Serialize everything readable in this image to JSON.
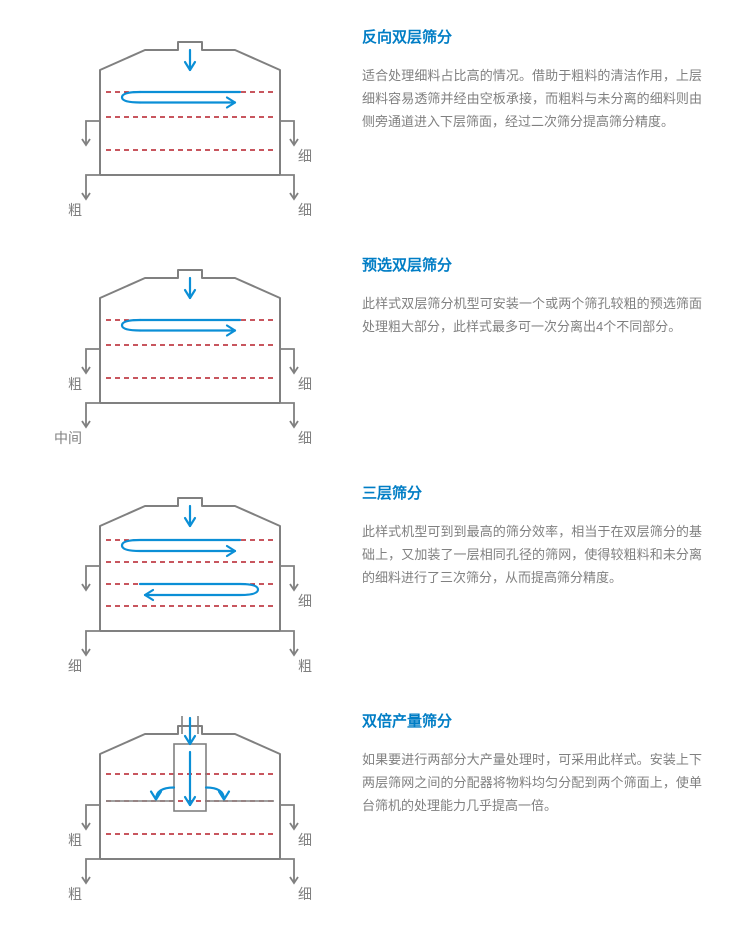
{
  "colors": {
    "title": "#007dc5",
    "body_text": "#808080",
    "outline": "#808080",
    "dashed_screen": "#b61f28",
    "arrow": "#0b8fd6",
    "background": "#ffffff"
  },
  "stroke": {
    "outline_w": 2,
    "screen_w": 1.4,
    "screen_dash": "5,4",
    "arrow_w": 2.2,
    "outlet_w": 1.8
  },
  "figures": [
    {
      "id": "fig1",
      "title": "反向双层筛分",
      "desc": "适合处理细料占比高的情况。借助于粗料的清洁作用，上层细料容易透筛并经由空板承接，而粗料与未分离的细料则由侧旁通道进入下层筛面，经过二次筛分提高筛分精度。",
      "outlets": {
        "left_upper": "",
        "left_lower": "粗",
        "right_upper": "细",
        "right_lower": "细"
      },
      "screens": [
        72,
        97,
        130
      ],
      "solid_deck": [
        72
      ],
      "arrows": "reverse"
    },
    {
      "id": "fig2",
      "title": "预选双层筛分",
      "desc": "此样式双层筛分机型可安装一个或两个筛孔较粗的预选筛面处理粗大部分，此样式最多可一次分离出4个不同部分。",
      "outlets": {
        "left_upper": "粗",
        "left_lower": "中间",
        "right_upper": "细",
        "right_lower": "细"
      },
      "screens": [
        72,
        97,
        130
      ],
      "solid_deck": [
        72
      ],
      "arrows": "reverse"
    },
    {
      "id": "fig3",
      "title": "三层筛分",
      "desc": "此样式机型可到到最高的筛分效率，相当于在双层筛分的基础上，又加装了一层相同孔径的筛网，使得较粗料和未分离的细料进行了三次筛分，从而提高筛分精度。",
      "outlets": {
        "left_upper": "",
        "left_lower": "细",
        "right_upper": "细",
        "right_lower": "粗"
      },
      "screens": [
        64,
        86,
        108,
        130
      ],
      "solid_deck": [
        64,
        108
      ],
      "arrows": "zigzag"
    },
    {
      "id": "fig4",
      "title": "双倍产量筛分",
      "desc": "如果要进行两部分大产量处理时，可采用此样式。安装上下两层筛网之间的分配器将物料均匀分配到两个筛面上，使单台筛机的处理能力几乎提高一倍。",
      "outlets": {
        "left_upper": "粗",
        "left_lower": "粗",
        "right_upper": "细",
        "right_lower": "细"
      },
      "screens": [
        70,
        97,
        130
      ],
      "solid_deck": [
        97
      ],
      "arrows": "split",
      "divider_box": true
    }
  ]
}
